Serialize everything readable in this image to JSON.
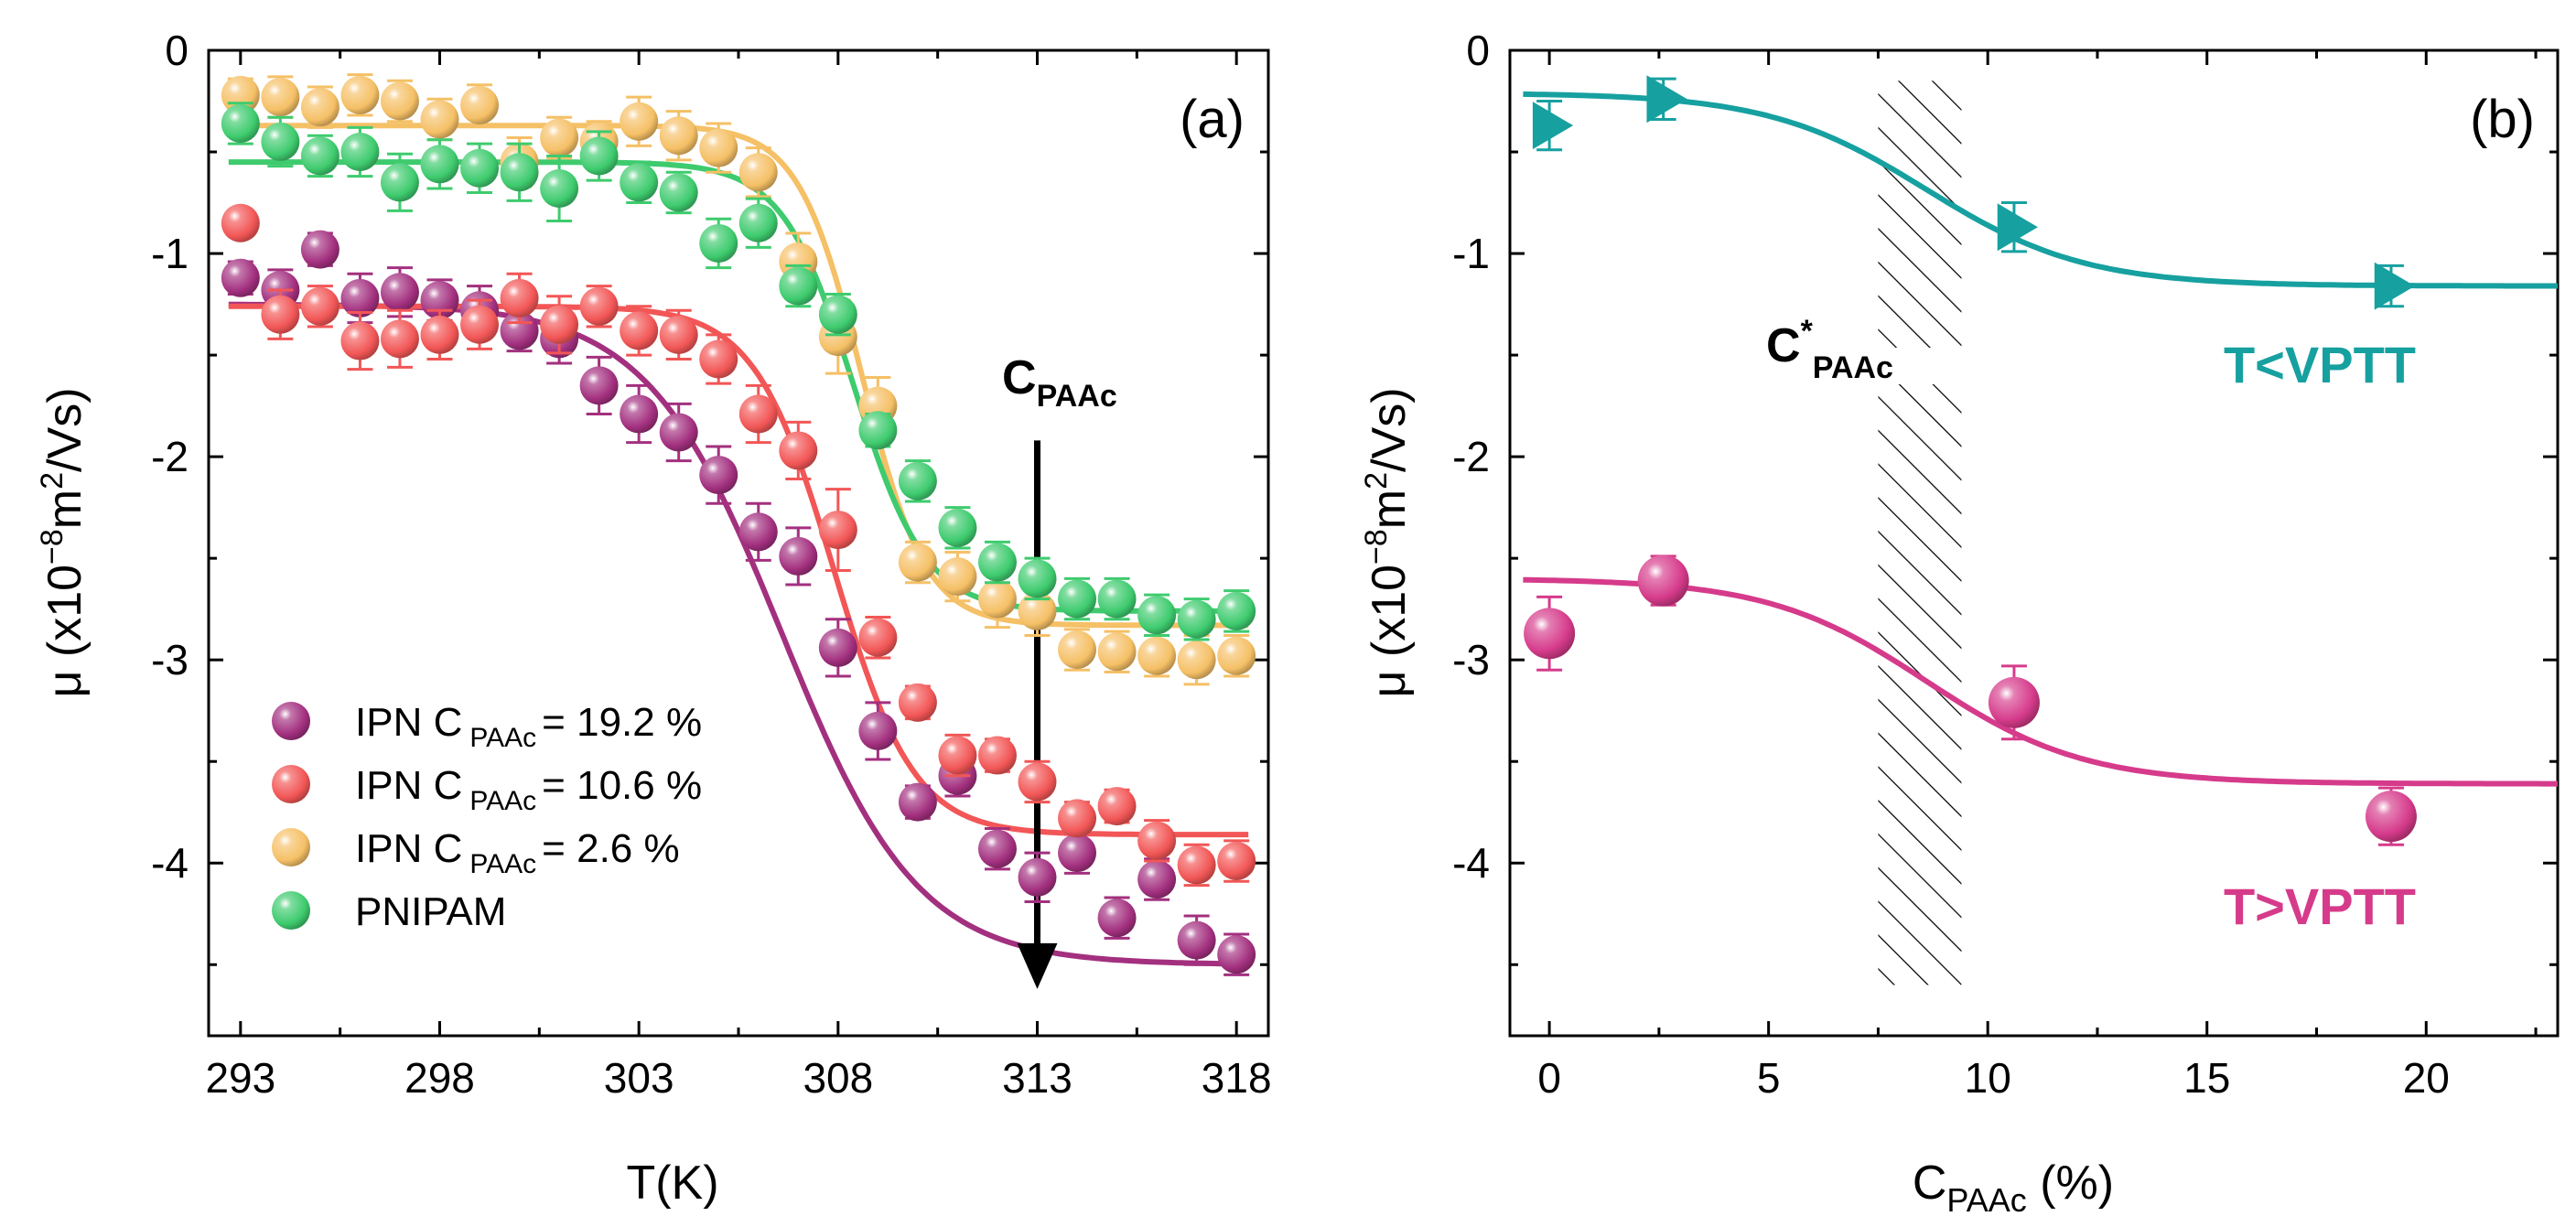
{
  "chart_data": [
    {
      "type": "scatter",
      "panel": "(a)",
      "xlabel": "T(K)",
      "ylabel_prefix": "μ (x10",
      "ylabel_exp1": "−8",
      "ylabel_mid": "m",
      "ylabel_exp2": "2",
      "ylabel_suffix": "/Vs)",
      "xlim": [
        292.2,
        318.8
      ],
      "ylim": [
        -4.85,
        0
      ],
      "xticks": [
        293,
        298,
        303,
        308,
        313,
        318
      ],
      "yticks": [
        0,
        -1,
        -2,
        -3,
        -4
      ],
      "ytick_labels": [
        "0",
        "-1",
        "-2",
        "-3",
        "-4"
      ],
      "legend_position": "bottom-left",
      "annotation": {
        "main": "C",
        "sub": "PAAc",
        "arrow_x": 313,
        "arrow_from": -1.92,
        "arrow_to": -4.62
      },
      "series": [
        {
          "name": "IPN C PAAc = 19.2 %",
          "label_main": "IPN C",
          "label_sub": "PAAc",
          "label_tail": "= 19.2 %",
          "color": "#a3307f",
          "fit": {
            "top": -1.25,
            "bottom": -4.5,
            "x0": 306.6,
            "width": 1.7
          },
          "x": [
            293,
            294,
            295,
            296,
            297,
            298,
            299,
            300,
            301,
            302,
            303,
            304,
            305,
            306,
            307,
            308,
            309,
            310,
            311,
            312,
            313,
            314,
            315,
            316,
            317,
            318
          ],
          "y": [
            -1.12,
            -1.18,
            -0.98,
            -1.22,
            -1.19,
            -1.23,
            -1.28,
            -1.38,
            -1.42,
            -1.65,
            -1.79,
            -1.88,
            -2.09,
            -2.37,
            -2.49,
            -2.94,
            -3.35,
            -3.7,
            -3.57,
            -3.93,
            -4.07,
            -3.95,
            -4.27,
            -4.08,
            -4.38,
            -4.45
          ],
          "err": [
            0.08,
            0.1,
            0.08,
            0.12,
            0.12,
            0.1,
            0.12,
            0.1,
            0.12,
            0.14,
            0.14,
            0.14,
            0.14,
            0.14,
            0.14,
            0.14,
            0.14,
            0.08,
            0.1,
            0.1,
            0.12,
            0.1,
            0.1,
            0.1,
            0.12,
            0.1
          ]
        },
        {
          "name": "IPN C PAAc = 10.6 %",
          "label_main": "IPN C",
          "label_sub": "PAAc",
          "label_tail": "= 10.6 %",
          "color": "#f25656",
          "fit": {
            "top": -1.26,
            "bottom": -3.86,
            "x0": 307.9,
            "width": 1.0
          },
          "x": [
            293,
            294,
            295,
            296,
            297,
            298,
            299,
            300,
            301,
            302,
            303,
            304,
            305,
            306,
            307,
            308,
            309,
            310,
            311,
            312,
            313,
            314,
            315,
            316,
            317,
            318
          ],
          "y": [
            -0.85,
            -1.3,
            -1.26,
            -1.43,
            -1.42,
            -1.4,
            -1.35,
            -1.22,
            -1.35,
            -1.26,
            -1.38,
            -1.4,
            -1.52,
            -1.79,
            -1.97,
            -2.36,
            -2.89,
            -3.21,
            -3.47,
            -3.47,
            -3.6,
            -3.78,
            -3.72,
            -3.89,
            -4.01,
            -3.99
          ],
          "err": [
            0.06,
            0.12,
            0.1,
            0.14,
            0.14,
            0.12,
            0.12,
            0.12,
            0.14,
            0.1,
            0.12,
            0.12,
            0.12,
            0.14,
            0.14,
            0.2,
            0.1,
            0.08,
            0.1,
            0.08,
            0.1,
            0.08,
            0.08,
            0.1,
            0.1,
            0.1
          ]
        },
        {
          "name": "IPN C PAAc = 2.6 %",
          "label_main": "IPN C",
          "label_sub": "PAAc",
          "label_tail": "= 2.6 %",
          "color": "#f5c066",
          "fit": {
            "top": -0.37,
            "bottom": -2.83,
            "x0": 308.6,
            "width": 0.8
          },
          "x": [
            293,
            294,
            295,
            296,
            297,
            298,
            299,
            300,
            301,
            302,
            303,
            304,
            305,
            306,
            307,
            308,
            309,
            310,
            311,
            312,
            313,
            314,
            315,
            316,
            317,
            318
          ],
          "y": [
            -0.22,
            -0.23,
            -0.28,
            -0.22,
            -0.25,
            -0.34,
            -0.27,
            -0.55,
            -0.43,
            -0.45,
            -0.35,
            -0.42,
            -0.48,
            -0.6,
            -1.04,
            -1.41,
            -1.75,
            -2.52,
            -2.59,
            -2.7,
            -2.76,
            -2.95,
            -2.96,
            -2.98,
            -3.0,
            -2.98
          ],
          "err": [
            0.08,
            0.1,
            0.1,
            0.1,
            0.1,
            0.1,
            0.1,
            0.12,
            0.1,
            0.1,
            0.12,
            0.12,
            0.12,
            0.12,
            0.14,
            0.18,
            0.14,
            0.1,
            0.12,
            0.14,
            0.12,
            0.1,
            0.1,
            0.1,
            0.12,
            0.1
          ]
        },
        {
          "name": "PNIPAM",
          "label_main": "PNIPAM",
          "label_sub": "",
          "label_tail": "",
          "color": "#3ecb6e",
          "fit": {
            "top": -0.55,
            "bottom": -2.76,
            "x0": 308.4,
            "width": 0.9
          },
          "x": [
            293,
            294,
            295,
            296,
            297,
            298,
            299,
            300,
            301,
            302,
            303,
            304,
            305,
            306,
            307,
            308,
            309,
            310,
            311,
            312,
            313,
            314,
            315,
            316,
            317,
            318
          ],
          "y": [
            -0.36,
            -0.45,
            -0.52,
            -0.5,
            -0.65,
            -0.56,
            -0.58,
            -0.6,
            -0.68,
            -0.52,
            -0.65,
            -0.7,
            -0.95,
            -0.85,
            -1.16,
            -1.3,
            -1.87,
            -2.12,
            -2.35,
            -2.52,
            -2.6,
            -2.7,
            -2.7,
            -2.78,
            -2.8,
            -2.76
          ],
          "err": [
            0.1,
            0.12,
            0.1,
            0.12,
            0.14,
            0.12,
            0.12,
            0.14,
            0.16,
            0.12,
            0.1,
            0.1,
            0.12,
            0.12,
            0.1,
            0.1,
            0.08,
            0.1,
            0.1,
            0.1,
            0.1,
            0.1,
            0.1,
            0.1,
            0.1,
            0.1
          ]
        }
      ]
    },
    {
      "type": "scatter",
      "panel": "(b)",
      "xlabel_main": "C",
      "xlabel_sub": "PAAc",
      "xlabel_tail": " (%)",
      "ylabel_prefix": "μ (x10",
      "ylabel_exp1": "−8",
      "ylabel_mid": "m",
      "ylabel_exp2": "2",
      "ylabel_suffix": "/Vs)",
      "xlim": [
        -0.9,
        23
      ],
      "ylim": [
        -4.85,
        0
      ],
      "xticks": [
        0,
        5,
        10,
        15,
        20
      ],
      "yticks": [
        0,
        -1,
        -2,
        -3,
        -4
      ],
      "ytick_labels": [
        "0",
        "-1",
        "-2",
        "-3",
        "-4"
      ],
      "critical_region": {
        "label_main": "C",
        "label_sup": "*",
        "label_sub": "PAAc",
        "x_from": 7.5,
        "x_to": 9.4,
        "y_from": -0.15,
        "y_to": -4.6
      },
      "series": [
        {
          "name": "T<VPTT",
          "color": "#17a0a0",
          "marker": "triangle-right",
          "fit": {
            "top": -0.21,
            "bottom": -1.16,
            "x0": 8.6,
            "width": 1.8,
            "x_from": -0.6,
            "x_to": 23
          },
          "x": [
            0,
            2.6,
            10.6,
            19.2
          ],
          "y": [
            -0.37,
            -0.24,
            -0.87,
            -1.16
          ],
          "err": [
            0.12,
            0.1,
            0.12,
            0.1
          ]
        },
        {
          "name": "T>VPTT",
          "color": "#d63b8b",
          "marker": "circle",
          "fit": {
            "top": -2.6,
            "bottom": -3.61,
            "x0": 8.6,
            "width": 1.8,
            "x_from": -0.6,
            "x_to": 23
          },
          "x": [
            0,
            2.6,
            10.6,
            19.2
          ],
          "y": [
            -2.87,
            -2.61,
            -3.21,
            -3.77
          ],
          "err": [
            0.18,
            0.12,
            0.18,
            0.14
          ]
        }
      ]
    }
  ]
}
